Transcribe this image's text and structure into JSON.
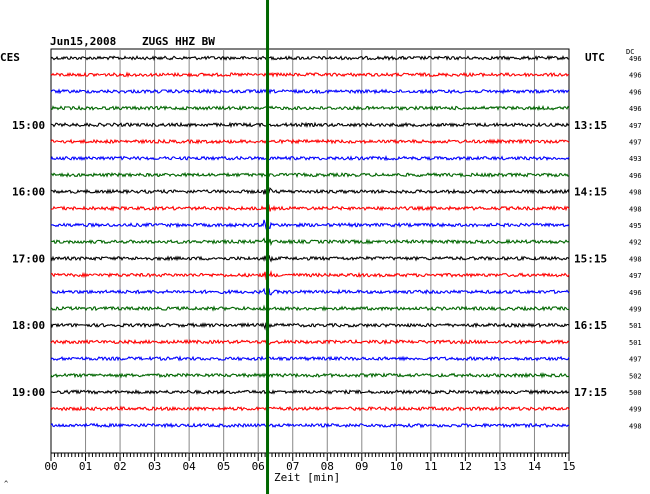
{
  "header": {
    "date": "Jun15,2008",
    "station": "ZUGS HHZ BW",
    "left_zone": "CES",
    "right_zone": "UTC",
    "dc_label": "DC",
    "corner_mark": "^"
  },
  "chart_data": {
    "type": "line",
    "title": "Jun15,2008 ZUGS HHZ BW",
    "xlabel": "Zeit [min]",
    "xlim": [
      0,
      15
    ],
    "x_ticks": [
      "00",
      "01",
      "02",
      "03",
      "04",
      "05",
      "06",
      "07",
      "08",
      "09",
      "10",
      "11",
      "12",
      "13",
      "14",
      "15"
    ],
    "rows_per_hour": 4,
    "row_minutes": 15,
    "trace_colors": [
      "#000000",
      "#ff0000",
      "#0000ff",
      "#006600"
    ],
    "left_hour_labels": [
      {
        "label": "15:00",
        "row": 4
      },
      {
        "label": "16:00",
        "row": 8
      },
      {
        "label": "17:00",
        "row": 12
      },
      {
        "label": "18:00",
        "row": 16
      },
      {
        "label": "19:00",
        "row": 20
      }
    ],
    "right_hour_labels": [
      {
        "label": "13:15",
        "row": 4
      },
      {
        "label": "14:15",
        "row": 8
      },
      {
        "label": "15:15",
        "row": 12
      },
      {
        "label": "16:15",
        "row": 16
      },
      {
        "label": "17:15",
        "row": 20
      }
    ],
    "dc_values": [
      "496",
      "496",
      "496",
      "496",
      "497",
      "497",
      "493",
      "496",
      "498",
      "498",
      "495",
      "492",
      "498",
      "497",
      "496",
      "499",
      "501",
      "501",
      "497",
      "502",
      "500",
      "499",
      "498"
    ],
    "event_marker_minute": 6.27,
    "event_marker_color": "#006600",
    "event_rows": [
      8,
      9,
      10,
      11,
      12,
      13,
      14,
      15,
      16,
      17
    ],
    "event_peak_row": 10
  }
}
